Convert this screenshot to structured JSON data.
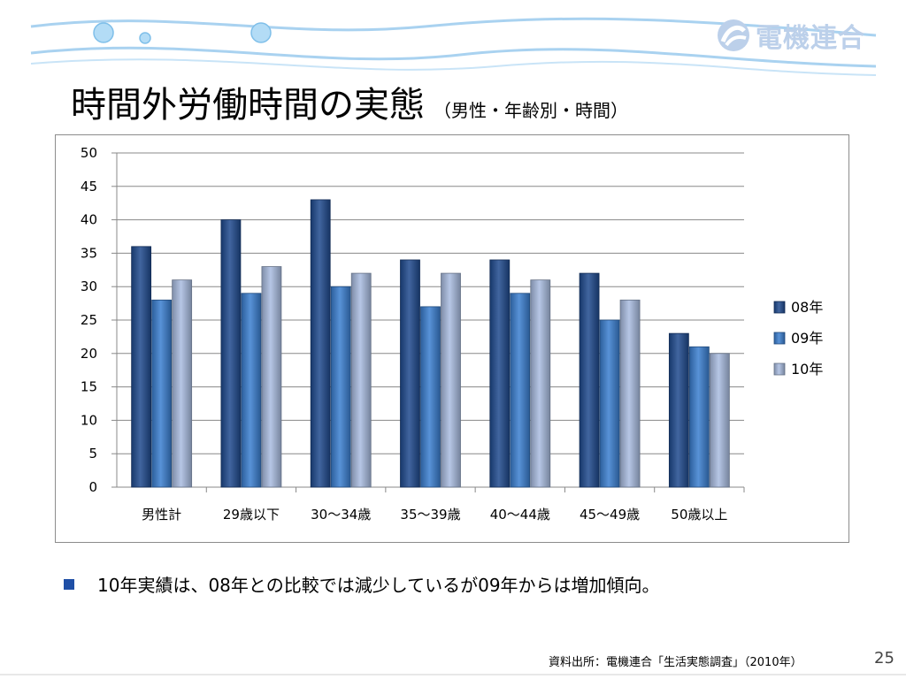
{
  "header": {
    "logo_text": "電機連合",
    "title": "時間外労働時間の実態",
    "subtitle": "（男性・年齢別・時間）"
  },
  "chart_data": {
    "type": "bar",
    "categories": [
      "男性計",
      "29歳以下",
      "30～34歳",
      "35～39歳",
      "40～44歳",
      "45～49歳",
      "50歳以上"
    ],
    "series": [
      {
        "name": "08年",
        "values": [
          36,
          40,
          43,
          34,
          34,
          32,
          23
        ],
        "color": "#1f4a8e"
      },
      {
        "name": "09年",
        "values": [
          28,
          29,
          30,
          27,
          29,
          25,
          21
        ],
        "color": "#3a7fd0"
      },
      {
        "name": "10年",
        "values": [
          31,
          33,
          32,
          32,
          31,
          28,
          20
        ],
        "color": "#a9bce0"
      }
    ],
    "ylim": [
      0,
      50
    ],
    "yticks": [
      "0",
      "5",
      "10",
      "15",
      "20",
      "25",
      "30",
      "35",
      "40",
      "45",
      "50"
    ],
    "grid": true,
    "legend": "right"
  },
  "bullets": [
    "10年実績は、08年との比較では減少しているが09年からは増加傾向。"
  ],
  "footer": {
    "source": "資料出所：電機連合「生活実態調査」（2010年）",
    "page_number": "25"
  }
}
